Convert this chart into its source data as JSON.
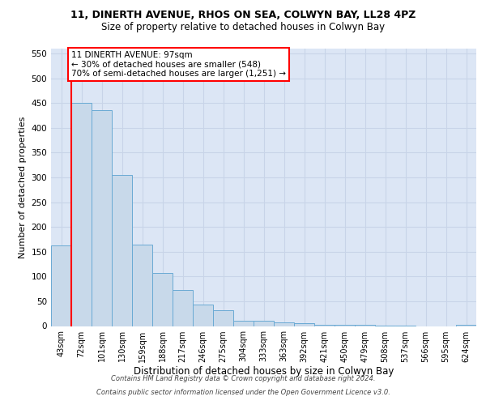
{
  "title1": "11, DINERTH AVENUE, RHOS ON SEA, COLWYN BAY, LL28 4PZ",
  "title2": "Size of property relative to detached houses in Colwyn Bay",
  "xlabel": "Distribution of detached houses by size in Colwyn Bay",
  "ylabel": "Number of detached properties",
  "categories": [
    "43sqm",
    "72sqm",
    "101sqm",
    "130sqm",
    "159sqm",
    "188sqm",
    "217sqm",
    "246sqm",
    "275sqm",
    "304sqm",
    "333sqm",
    "363sqm",
    "392sqm",
    "421sqm",
    "450sqm",
    "479sqm",
    "508sqm",
    "537sqm",
    "566sqm",
    "595sqm",
    "624sqm"
  ],
  "values": [
    163,
    450,
    435,
    305,
    165,
    107,
    72,
    44,
    32,
    10,
    10,
    8,
    5,
    3,
    2,
    2,
    1,
    1,
    0,
    0,
    3
  ],
  "bar_color": "#c8d9ea",
  "bar_edge_color": "#6aaad4",
  "grid_color": "#c8d4e8",
  "annotation_text": "11 DINERTH AVENUE: 97sqm\n← 30% of detached houses are smaller (548)\n70% of semi-detached houses are larger (1,251) →",
  "vline_color": "red",
  "footer1": "Contains HM Land Registry data © Crown copyright and database right 2024.",
  "footer2": "Contains public sector information licensed under the Open Government Licence v3.0.",
  "ylim": [
    0,
    560
  ],
  "yticks": [
    0,
    50,
    100,
    150,
    200,
    250,
    300,
    350,
    400,
    450,
    500,
    550
  ],
  "plot_bg_color": "#dce6f5",
  "fig_bg_color": "#ffffff"
}
